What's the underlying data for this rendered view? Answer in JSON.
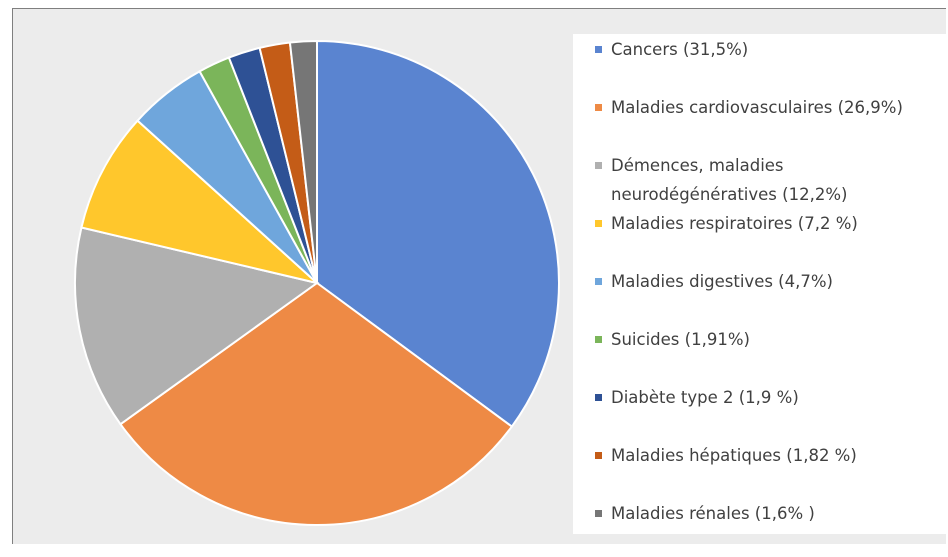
{
  "chart_data": {
    "type": "pie",
    "categories": [
      "Cancers (31,5%)",
      "Maladies cardiovasculaires (26,9%)",
      "Démences, maladies neurodégénératives (12,2%)",
      "Maladies respiratoires (7,2 %)",
      "Maladies digestives (4,7%)",
      "Suicides (1,91%)",
      "Diabète type 2 (1,9 %)",
      "Maladies hépatiques (1,82 %)",
      "Maladies rénales (1,6% )"
    ],
    "values": [
      31.5,
      26.9,
      12.2,
      7.2,
      4.7,
      1.91,
      1.9,
      1.82,
      1.6
    ],
    "colors": [
      "#5a84d0",
      "#ee8a45",
      "#b0b0b0",
      "#ffc72c",
      "#6fa6dc",
      "#7bb55a",
      "#2e5195",
      "#c45c17",
      "#767676"
    ],
    "legend": "right"
  }
}
